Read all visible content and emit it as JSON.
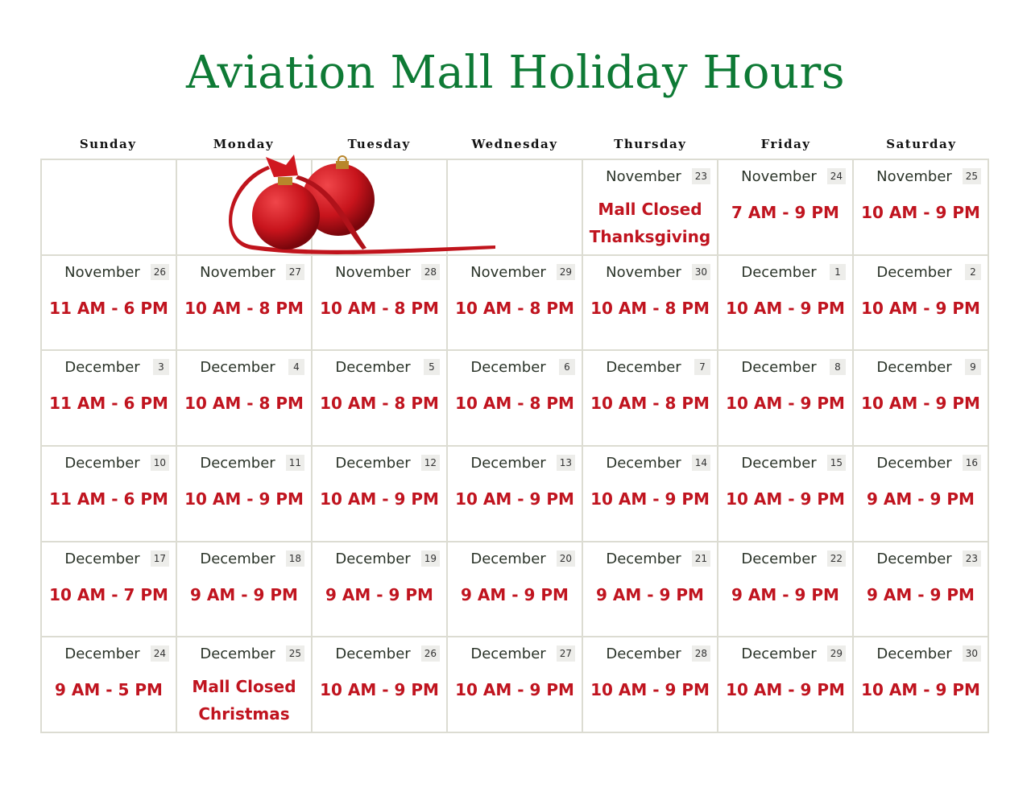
{
  "title": "Aviation Mall Holiday Hours",
  "colors": {
    "title": "#0e7a35",
    "hours": "#c0141f"
  },
  "days": [
    "Sunday",
    "Monday",
    "Tuesday",
    "Wednesday",
    "Thursday",
    "Friday",
    "Saturday"
  ],
  "weeks": [
    [
      null,
      null,
      null,
      null,
      {
        "month": "November",
        "day": "23",
        "hours": [
          "Mall Closed",
          "Thanksgiving"
        ]
      },
      {
        "month": "November",
        "day": "24",
        "hours": [
          "7 AM - 9 PM"
        ]
      },
      {
        "month": "November",
        "day": "25",
        "hours": [
          "10 AM - 9 PM"
        ]
      }
    ],
    [
      {
        "month": "November",
        "day": "26",
        "hours": [
          "11 AM - 6 PM"
        ]
      },
      {
        "month": "November",
        "day": "27",
        "hours": [
          "10 AM - 8 PM"
        ]
      },
      {
        "month": "November",
        "day": "28",
        "hours": [
          "10 AM - 8 PM"
        ]
      },
      {
        "month": "November",
        "day": "29",
        "hours": [
          "10 AM - 8 PM"
        ]
      },
      {
        "month": "November",
        "day": "30",
        "hours": [
          "10 AM - 8 PM"
        ]
      },
      {
        "month": "December",
        "day": "1",
        "hours": [
          "10 AM - 9 PM"
        ]
      },
      {
        "month": "December",
        "day": "2",
        "hours": [
          "10 AM - 9 PM"
        ]
      }
    ],
    [
      {
        "month": "December",
        "day": "3",
        "hours": [
          "11 AM - 6 PM"
        ]
      },
      {
        "month": "December",
        "day": "4",
        "hours": [
          "10 AM - 8 PM"
        ]
      },
      {
        "month": "December",
        "day": "5",
        "hours": [
          "10 AM - 8 PM"
        ]
      },
      {
        "month": "December",
        "day": "6",
        "hours": [
          "10 AM - 8 PM"
        ]
      },
      {
        "month": "December",
        "day": "7",
        "hours": [
          "10 AM - 8 PM"
        ]
      },
      {
        "month": "December",
        "day": "8",
        "hours": [
          "10 AM - 9 PM"
        ]
      },
      {
        "month": "December",
        "day": "9",
        "hours": [
          "10 AM - 9 PM"
        ]
      }
    ],
    [
      {
        "month": "December",
        "day": "10",
        "hours": [
          "11 AM - 6 PM"
        ]
      },
      {
        "month": "December",
        "day": "11",
        "hours": [
          "10 AM - 9 PM"
        ]
      },
      {
        "month": "December",
        "day": "12",
        "hours": [
          "10 AM - 9 PM"
        ]
      },
      {
        "month": "December",
        "day": "13",
        "hours": [
          "10 AM - 9 PM"
        ]
      },
      {
        "month": "December",
        "day": "14",
        "hours": [
          "10 AM - 9 PM"
        ]
      },
      {
        "month": "December",
        "day": "15",
        "hours": [
          "10 AM - 9 PM"
        ]
      },
      {
        "month": "December",
        "day": "16",
        "hours": [
          "9 AM - 9 PM"
        ]
      }
    ],
    [
      {
        "month": "December",
        "day": "17",
        "hours": [
          "10 AM - 7 PM"
        ]
      },
      {
        "month": "December",
        "day": "18",
        "hours": [
          "9 AM - 9 PM"
        ]
      },
      {
        "month": "December",
        "day": "19",
        "hours": [
          "9 AM - 9 PM"
        ]
      },
      {
        "month": "December",
        "day": "20",
        "hours": [
          "9 AM - 9 PM"
        ]
      },
      {
        "month": "December",
        "day": "21",
        "hours": [
          "9 AM - 9 PM"
        ]
      },
      {
        "month": "December",
        "day": "22",
        "hours": [
          "9 AM - 9 PM"
        ]
      },
      {
        "month": "December",
        "day": "23",
        "hours": [
          "9 AM - 9 PM"
        ]
      }
    ],
    [
      {
        "month": "December",
        "day": "24",
        "hours": [
          "9 AM - 5 PM"
        ]
      },
      {
        "month": "December",
        "day": "25",
        "hours": [
          "Mall Closed",
          "Christmas"
        ]
      },
      {
        "month": "December",
        "day": "26",
        "hours": [
          "10 AM - 9 PM"
        ]
      },
      {
        "month": "December",
        "day": "27",
        "hours": [
          "10 AM - 9 PM"
        ]
      },
      {
        "month": "December",
        "day": "28",
        "hours": [
          "10 AM - 9 PM"
        ]
      },
      {
        "month": "December",
        "day": "29",
        "hours": [
          "10 AM - 9 PM"
        ]
      },
      {
        "month": "December",
        "day": "30",
        "hours": [
          "10 AM - 9 PM"
        ]
      }
    ]
  ]
}
